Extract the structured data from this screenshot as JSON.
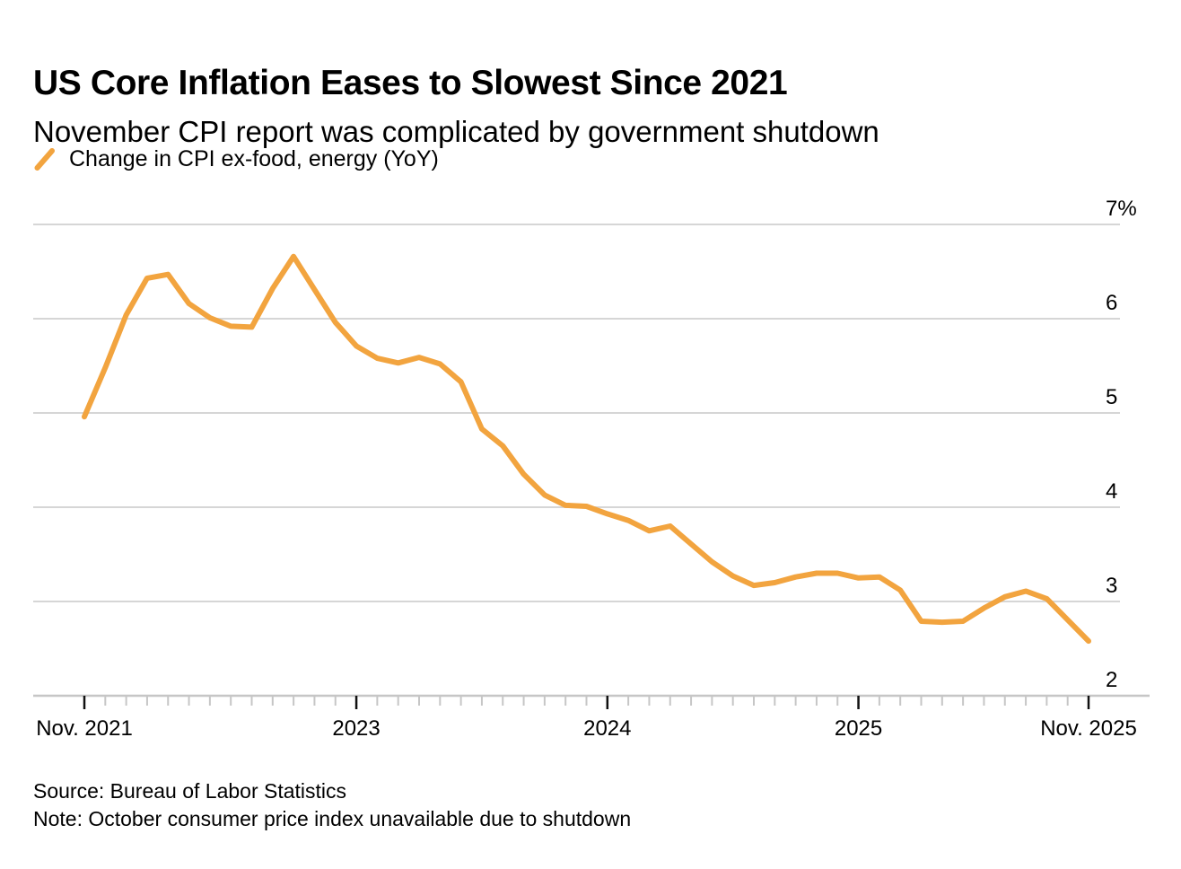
{
  "header": {
    "title": "US Core Inflation Eases to Slowest Since 2021",
    "subtitle": "November CPI report was complicated by government shutdown"
  },
  "legend": {
    "series_label": "Change in CPI ex-food, energy (YoY)",
    "swatch_color": "#F2A43F"
  },
  "footer": {
    "source": "Source: Bureau of Labor Statistics",
    "note": "Note: October consumer price index unavailable due to shutdown"
  },
  "colors": {
    "line": "#F2A43F",
    "gridline": "#D6D6D6",
    "axis_line": "#C6C6C6",
    "tick_minor": "#C6C6C6",
    "tick_major": "#111111",
    "label_text": "#000000"
  },
  "chart_data": {
    "type": "line",
    "title": "US Core Inflation Eases to Slowest Since 2021",
    "ylabel": "",
    "xlabel": "",
    "ylim": [
      2,
      7
    ],
    "grid": "horizontal",
    "legend_position": "top-left",
    "missing_data_note": "2025-10 value unavailable due to government shutdown; line connects Sep 2025 directly to Nov 2025",
    "y_ticks": [
      {
        "label": "7%",
        "value": 7
      },
      {
        "label": "6",
        "value": 6
      },
      {
        "label": "5",
        "value": 5
      },
      {
        "label": "4",
        "value": 4
      },
      {
        "label": "3",
        "value": 3
      },
      {
        "label": "2",
        "value": 2
      }
    ],
    "x_tick_labels": [
      {
        "label": "Nov. 2021",
        "month_index": 0
      },
      {
        "label": "2023",
        "month_index": 13
      },
      {
        "label": "2024",
        "month_index": 25
      },
      {
        "label": "2025",
        "month_index": 37
      },
      {
        "label": "Nov. 2025",
        "month_index": 48
      }
    ],
    "series": [
      {
        "name": "Change in CPI ex-food, energy (YoY)",
        "color": "#F2A43F",
        "x": [
          "2021-11",
          "2021-12",
          "2022-01",
          "2022-02",
          "2022-03",
          "2022-04",
          "2022-05",
          "2022-06",
          "2022-07",
          "2022-08",
          "2022-09",
          "2022-10",
          "2022-11",
          "2022-12",
          "2023-01",
          "2023-02",
          "2023-03",
          "2023-04",
          "2023-05",
          "2023-06",
          "2023-07",
          "2023-08",
          "2023-09",
          "2023-10",
          "2023-11",
          "2023-12",
          "2024-01",
          "2024-02",
          "2024-03",
          "2024-04",
          "2024-05",
          "2024-06",
          "2024-07",
          "2024-08",
          "2024-09",
          "2024-10",
          "2024-11",
          "2024-12",
          "2025-01",
          "2025-02",
          "2025-03",
          "2025-04",
          "2025-05",
          "2025-06",
          "2025-07",
          "2025-08",
          "2025-09",
          "2025-10",
          "2025-11"
        ],
        "values": [
          4.96,
          5.48,
          6.04,
          6.43,
          6.47,
          6.16,
          6.01,
          5.92,
          5.91,
          6.32,
          6.66,
          6.31,
          5.96,
          5.71,
          5.58,
          5.53,
          5.59,
          5.52,
          5.33,
          4.83,
          4.65,
          4.35,
          4.13,
          4.02,
          4.01,
          3.93,
          3.86,
          3.75,
          3.8,
          3.61,
          3.42,
          3.27,
          3.17,
          3.2,
          3.26,
          3.3,
          3.3,
          3.25,
          3.26,
          3.12,
          2.79,
          2.78,
          2.79,
          2.93,
          3.05,
          3.11,
          3.03,
          null,
          2.58
        ]
      }
    ]
  }
}
